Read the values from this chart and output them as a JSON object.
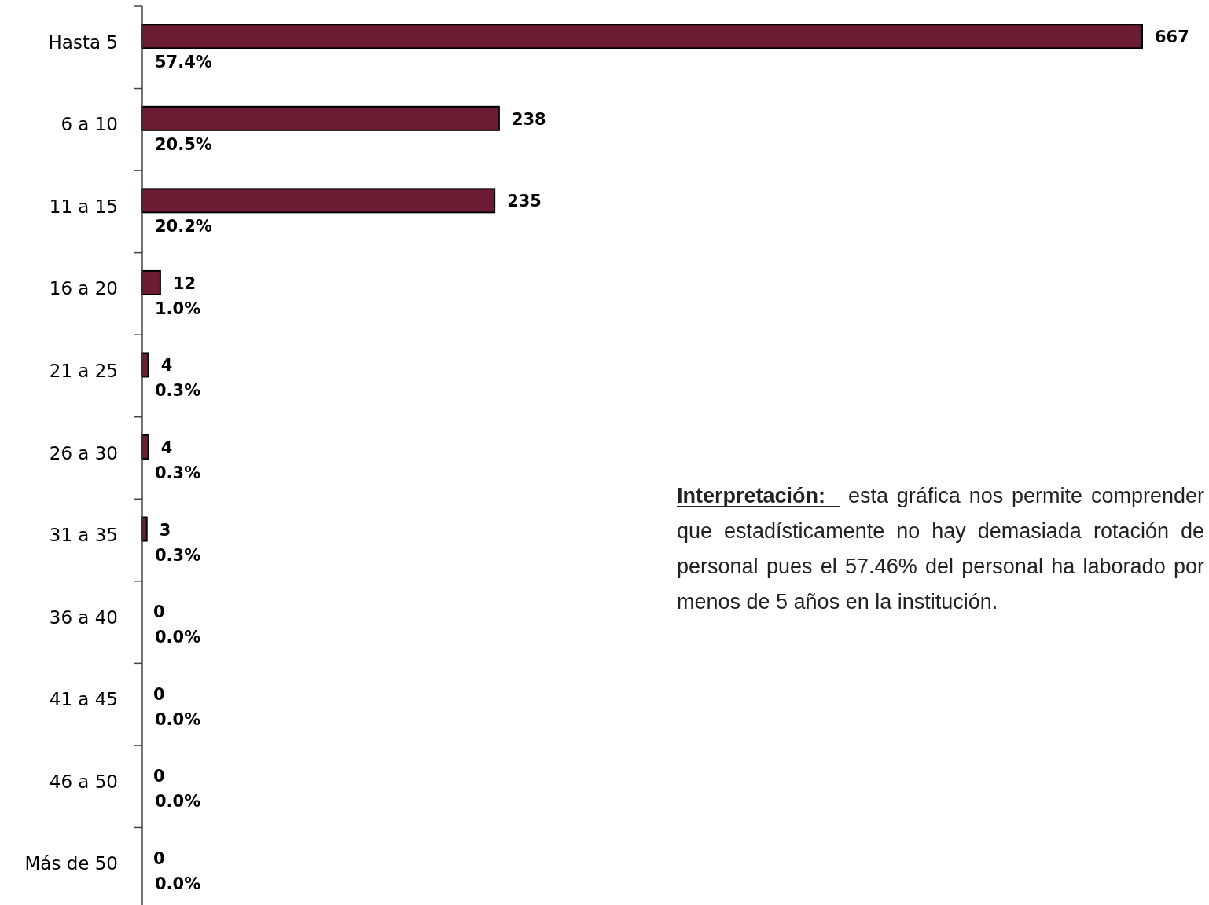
{
  "chart_data": {
    "type": "bar",
    "orientation": "horizontal",
    "categories": [
      "Hasta 5",
      "6 a 10",
      "11 a 15",
      "16 a 20",
      "21 a 25",
      "26 a 30",
      "31 a 35",
      "36 a 40",
      "41 a 45",
      "46 a 50",
      "Más de 50"
    ],
    "values": [
      667,
      238,
      235,
      12,
      4,
      4,
      3,
      0,
      0,
      0,
      0
    ],
    "color": "#6b1c33",
    "data_labels": true,
    "annotations": [
      "Interpretación: esta gráfica nos permite comprender que estadísticamente no hay demasiada rotación de personal pues el 57.46% del personal ha laborado por menos de 5 años en la institución.",
      "57.4%",
      "20.5%",
      "20.2%",
      "1.0%",
      "0.3%",
      "0.3%",
      "0.3%",
      "0.0%",
      "0.0%",
      "0.0%",
      "0.0%"
    ]
  }
}
